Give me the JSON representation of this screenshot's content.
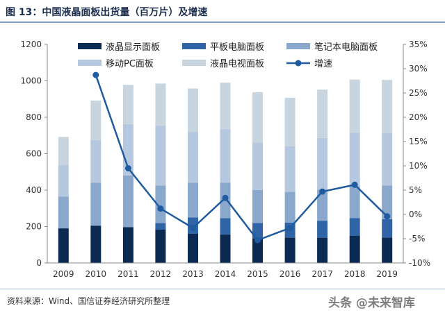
{
  "header": {
    "figure_title": "图 13：中国液晶面板出货量（百万片）及增速"
  },
  "footer": {
    "source": "资料来源：Wind、国信证券经济研究所整理",
    "watermark": "头条 @未来智库"
  },
  "colors": {
    "s1": "#0b2a52",
    "s2": "#2f64a6",
    "s3": "#8aa8cc",
    "s4": "#b5c8e0",
    "s5": "#c8d5de",
    "line": "#1f5b9e"
  },
  "chart_data": {
    "type": "bar",
    "stacked": true,
    "title": "中国液晶面板出货量（百万片）及增速",
    "categories": [
      "2009",
      "2010",
      "2011",
      "2012",
      "2013",
      "2014",
      "2015",
      "2016",
      "2017",
      "2018",
      "2019"
    ],
    "y_left": {
      "min": 0,
      "max": 1200,
      "ticks": [
        "0",
        "200",
        "400",
        "600",
        "800",
        "1000",
        "1200"
      ]
    },
    "y_right": {
      "min": -10,
      "max": 35,
      "ticks": [
        "-10%",
        "-5%",
        "0%",
        "5%",
        "10%",
        "15%",
        "20%",
        "25%",
        "30%",
        "35%"
      ]
    },
    "series": [
      {
        "name": "液晶显示面板",
        "values": [
          190,
          205,
          197,
          183,
          160,
          156,
          135,
          140,
          140,
          150,
          140
        ]
      },
      {
        "name": "平板电脑面板",
        "values": [
          0,
          0,
          0,
          37,
          90,
          90,
          85,
          82,
          92,
          97,
          100
        ]
      },
      {
        "name": "笔记本电脑面板",
        "values": [
          175,
          235,
          283,
          205,
          190,
          195,
          180,
          168,
          170,
          175,
          185
        ]
      },
      {
        "name": "移动PC面板",
        "values": [
          175,
          235,
          283,
          330,
          278,
          295,
          262,
          250,
          285,
          295,
          290
        ]
      },
      {
        "name": "液晶电视面板",
        "values": [
          152,
          217,
          215,
          230,
          240,
          254,
          275,
          267,
          265,
          290,
          290
        ]
      }
    ],
    "line_series": {
      "name": "增速",
      "axis": "right",
      "values": [
        null,
        28.7,
        9.5,
        1.2,
        -2.8,
        3.4,
        -5.3,
        -2.8,
        4.7,
        6.1,
        -0.4
      ]
    },
    "legend": [
      "液晶显示面板",
      "平板电脑面板",
      "笔记本电脑面板",
      "移动PC面板",
      "液晶电视面板",
      "增速"
    ],
    "legend_position": "top"
  }
}
